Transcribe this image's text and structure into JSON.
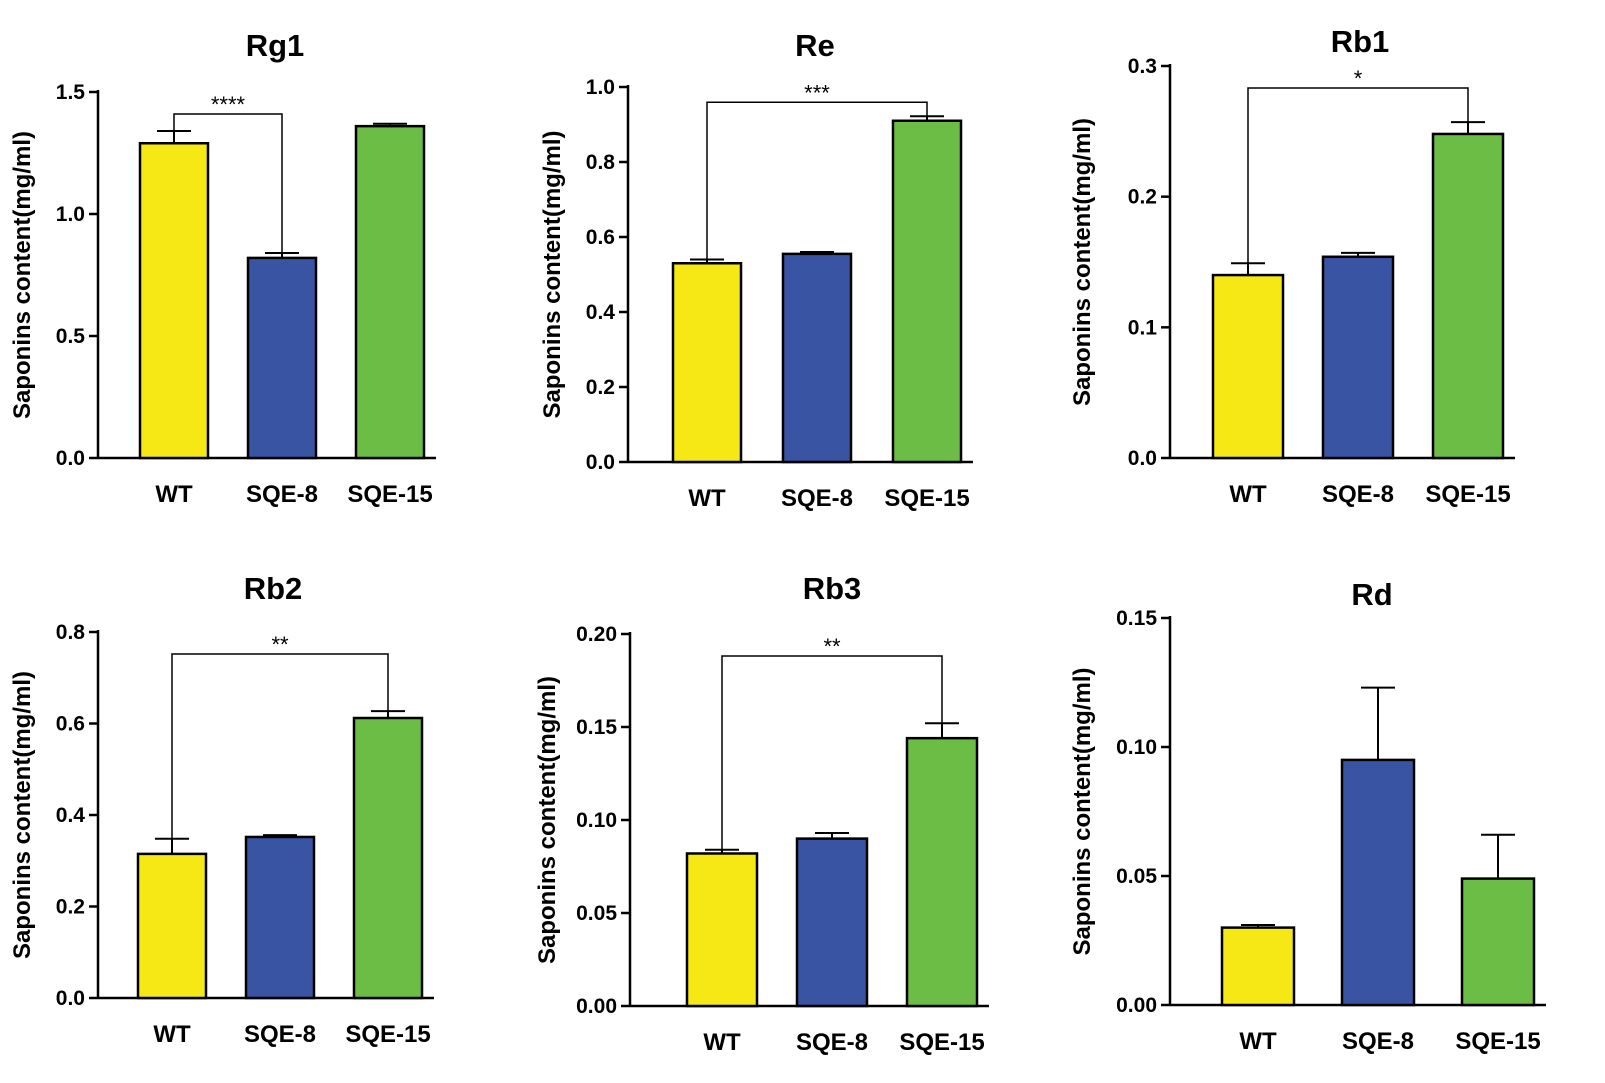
{
  "chart_data": [
    {
      "type": "bar",
      "title": "Rg1",
      "ylabel": "Saponins content(mg/ml)",
      "xlabel": "",
      "categories": [
        "WT",
        "SQE-8",
        "SQE-15"
      ],
      "values": [
        1.29,
        0.82,
        1.36
      ],
      "errors": [
        0.05,
        0.02,
        0.01
      ],
      "ylim": [
        0,
        1.5
      ],
      "yticks": [
        "0.0",
        "0.5",
        "1.0",
        "1.5"
      ],
      "significance": {
        "from": 0,
        "to": 1,
        "label": "****"
      },
      "colors": [
        "#f6e814",
        "#3a54a4",
        "#6cbd45"
      ]
    },
    {
      "type": "bar",
      "title": "Re",
      "ylabel": "Saponins content(mg/ml)",
      "xlabel": "",
      "categories": [
        "WT",
        "SQE-8",
        "SQE-15"
      ],
      "values": [
        0.53,
        0.555,
        0.91
      ],
      "errors": [
        0.01,
        0.005,
        0.012
      ],
      "ylim": [
        0,
        1.0
      ],
      "yticks": [
        "0.0",
        "0.2",
        "0.4",
        "0.6",
        "0.8",
        "1.0"
      ],
      "significance": {
        "from": 0,
        "to": 2,
        "label": "***"
      },
      "colors": [
        "#f6e814",
        "#3a54a4",
        "#6cbd45"
      ]
    },
    {
      "type": "bar",
      "title": "Rb1",
      "ylabel": "Saponins content(mg/ml)",
      "xlabel": "",
      "categories": [
        "WT",
        "SQE-8",
        "SQE-15"
      ],
      "values": [
        0.14,
        0.154,
        0.248
      ],
      "errors": [
        0.009,
        0.003,
        0.009
      ],
      "ylim": [
        0,
        0.3
      ],
      "yticks": [
        "0.0",
        "0.1",
        "0.2",
        "0.3"
      ],
      "significance": {
        "from": 0,
        "to": 2,
        "label": "*"
      },
      "colors": [
        "#f6e814",
        "#3a54a4",
        "#6cbd45"
      ]
    },
    {
      "type": "bar",
      "title": "Rb2",
      "ylabel": "Saponins content(mg/ml)",
      "xlabel": "",
      "categories": [
        "WT",
        "SQE-8",
        "SQE-15"
      ],
      "values": [
        0.315,
        0.352,
        0.612
      ],
      "errors": [
        0.033,
        0.004,
        0.015
      ],
      "ylim": [
        0,
        0.8
      ],
      "yticks": [
        "0.0",
        "0.2",
        "0.4",
        "0.6",
        "0.8"
      ],
      "significance": {
        "from": 0,
        "to": 2,
        "label": "**"
      },
      "colors": [
        "#f6e814",
        "#3a54a4",
        "#6cbd45"
      ]
    },
    {
      "type": "bar",
      "title": "Rb3",
      "ylabel": "Saponins content(mg/ml)",
      "xlabel": "",
      "categories": [
        "WT",
        "SQE-8",
        "SQE-15"
      ],
      "values": [
        0.082,
        0.09,
        0.144
      ],
      "errors": [
        0.002,
        0.003,
        0.008
      ],
      "ylim": [
        0,
        0.2
      ],
      "yticks": [
        "0.00",
        "0.05",
        "0.10",
        "0.15",
        "0.20"
      ],
      "significance": {
        "from": 0,
        "to": 2,
        "label": "**"
      },
      "colors": [
        "#f6e814",
        "#3a54a4",
        "#6cbd45"
      ]
    },
    {
      "type": "bar",
      "title": "Rd",
      "ylabel": "Saponins content(mg/ml)",
      "xlabel": "",
      "categories": [
        "WT",
        "SQE-8",
        "SQE-15"
      ],
      "values": [
        0.03,
        0.095,
        0.049
      ],
      "errors": [
        0.001,
        0.028,
        0.017
      ],
      "ylim": [
        0,
        0.15
      ],
      "yticks": [
        "0.00",
        "0.05",
        "0.10",
        "0.15"
      ],
      "significance": null,
      "colors": [
        "#f6e814",
        "#3a54a4",
        "#6cbd45"
      ]
    }
  ]
}
